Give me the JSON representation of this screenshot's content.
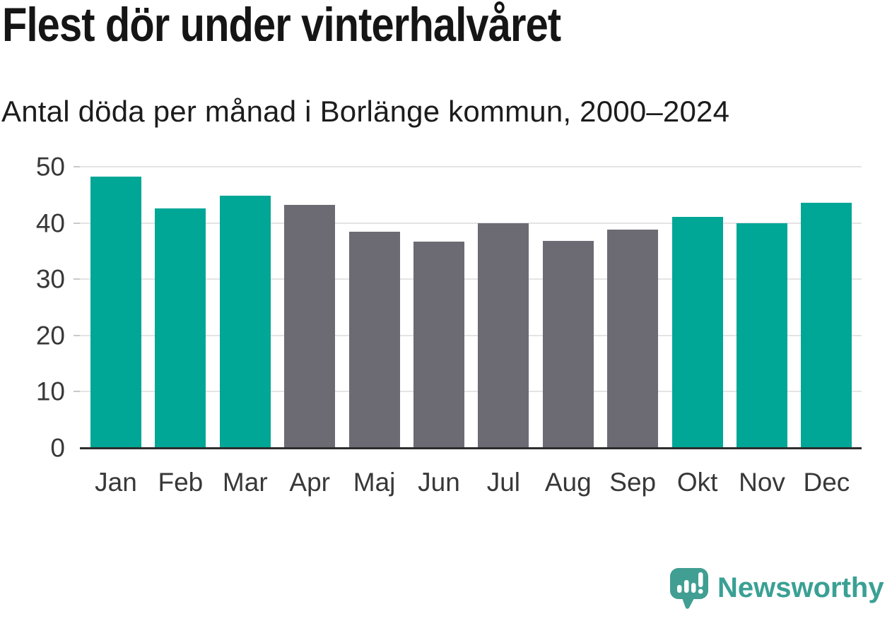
{
  "title": "Flest dör under vinterhalvåret",
  "subtitle": "Antal döda per månad i Borlänge kommun, 2000–2024",
  "colors": {
    "winter_bar": "#00a696",
    "summer_bar": "#6c6b73",
    "gridline": "#e4e4e4",
    "axis_line": "#2d2d2d",
    "axis_text": "#383838",
    "title_text": "#151515",
    "logo": "#419e92",
    "logo_text": "#3aa094"
  },
  "chart_data": {
    "type": "bar",
    "title": "Flest dör under vinterhalvåret",
    "subtitle": "Antal döda per månad i Borlänge kommun, 2000–2024",
    "categories": [
      "Jan",
      "Feb",
      "Mar",
      "Apr",
      "Maj",
      "Jun",
      "Jul",
      "Aug",
      "Sep",
      "Okt",
      "Nov",
      "Dec"
    ],
    "values": [
      48.2,
      42.6,
      44.9,
      43.2,
      38.4,
      36.7,
      39.9,
      36.8,
      38.8,
      41.1,
      39.9,
      43.6
    ],
    "bar_colors": [
      "winter_bar",
      "winter_bar",
      "winter_bar",
      "summer_bar",
      "summer_bar",
      "summer_bar",
      "summer_bar",
      "summer_bar",
      "summer_bar",
      "winter_bar",
      "winter_bar",
      "winter_bar"
    ],
    "xlabel": "",
    "ylabel": "",
    "ylim": [
      0,
      50
    ],
    "yticks": [
      0,
      10,
      20,
      30,
      40,
      50
    ],
    "grid": true,
    "legend": false
  },
  "branding": {
    "logo_text": "Newsworthy",
    "logo_icon": "speech-bubble-bar-chart-icon"
  }
}
